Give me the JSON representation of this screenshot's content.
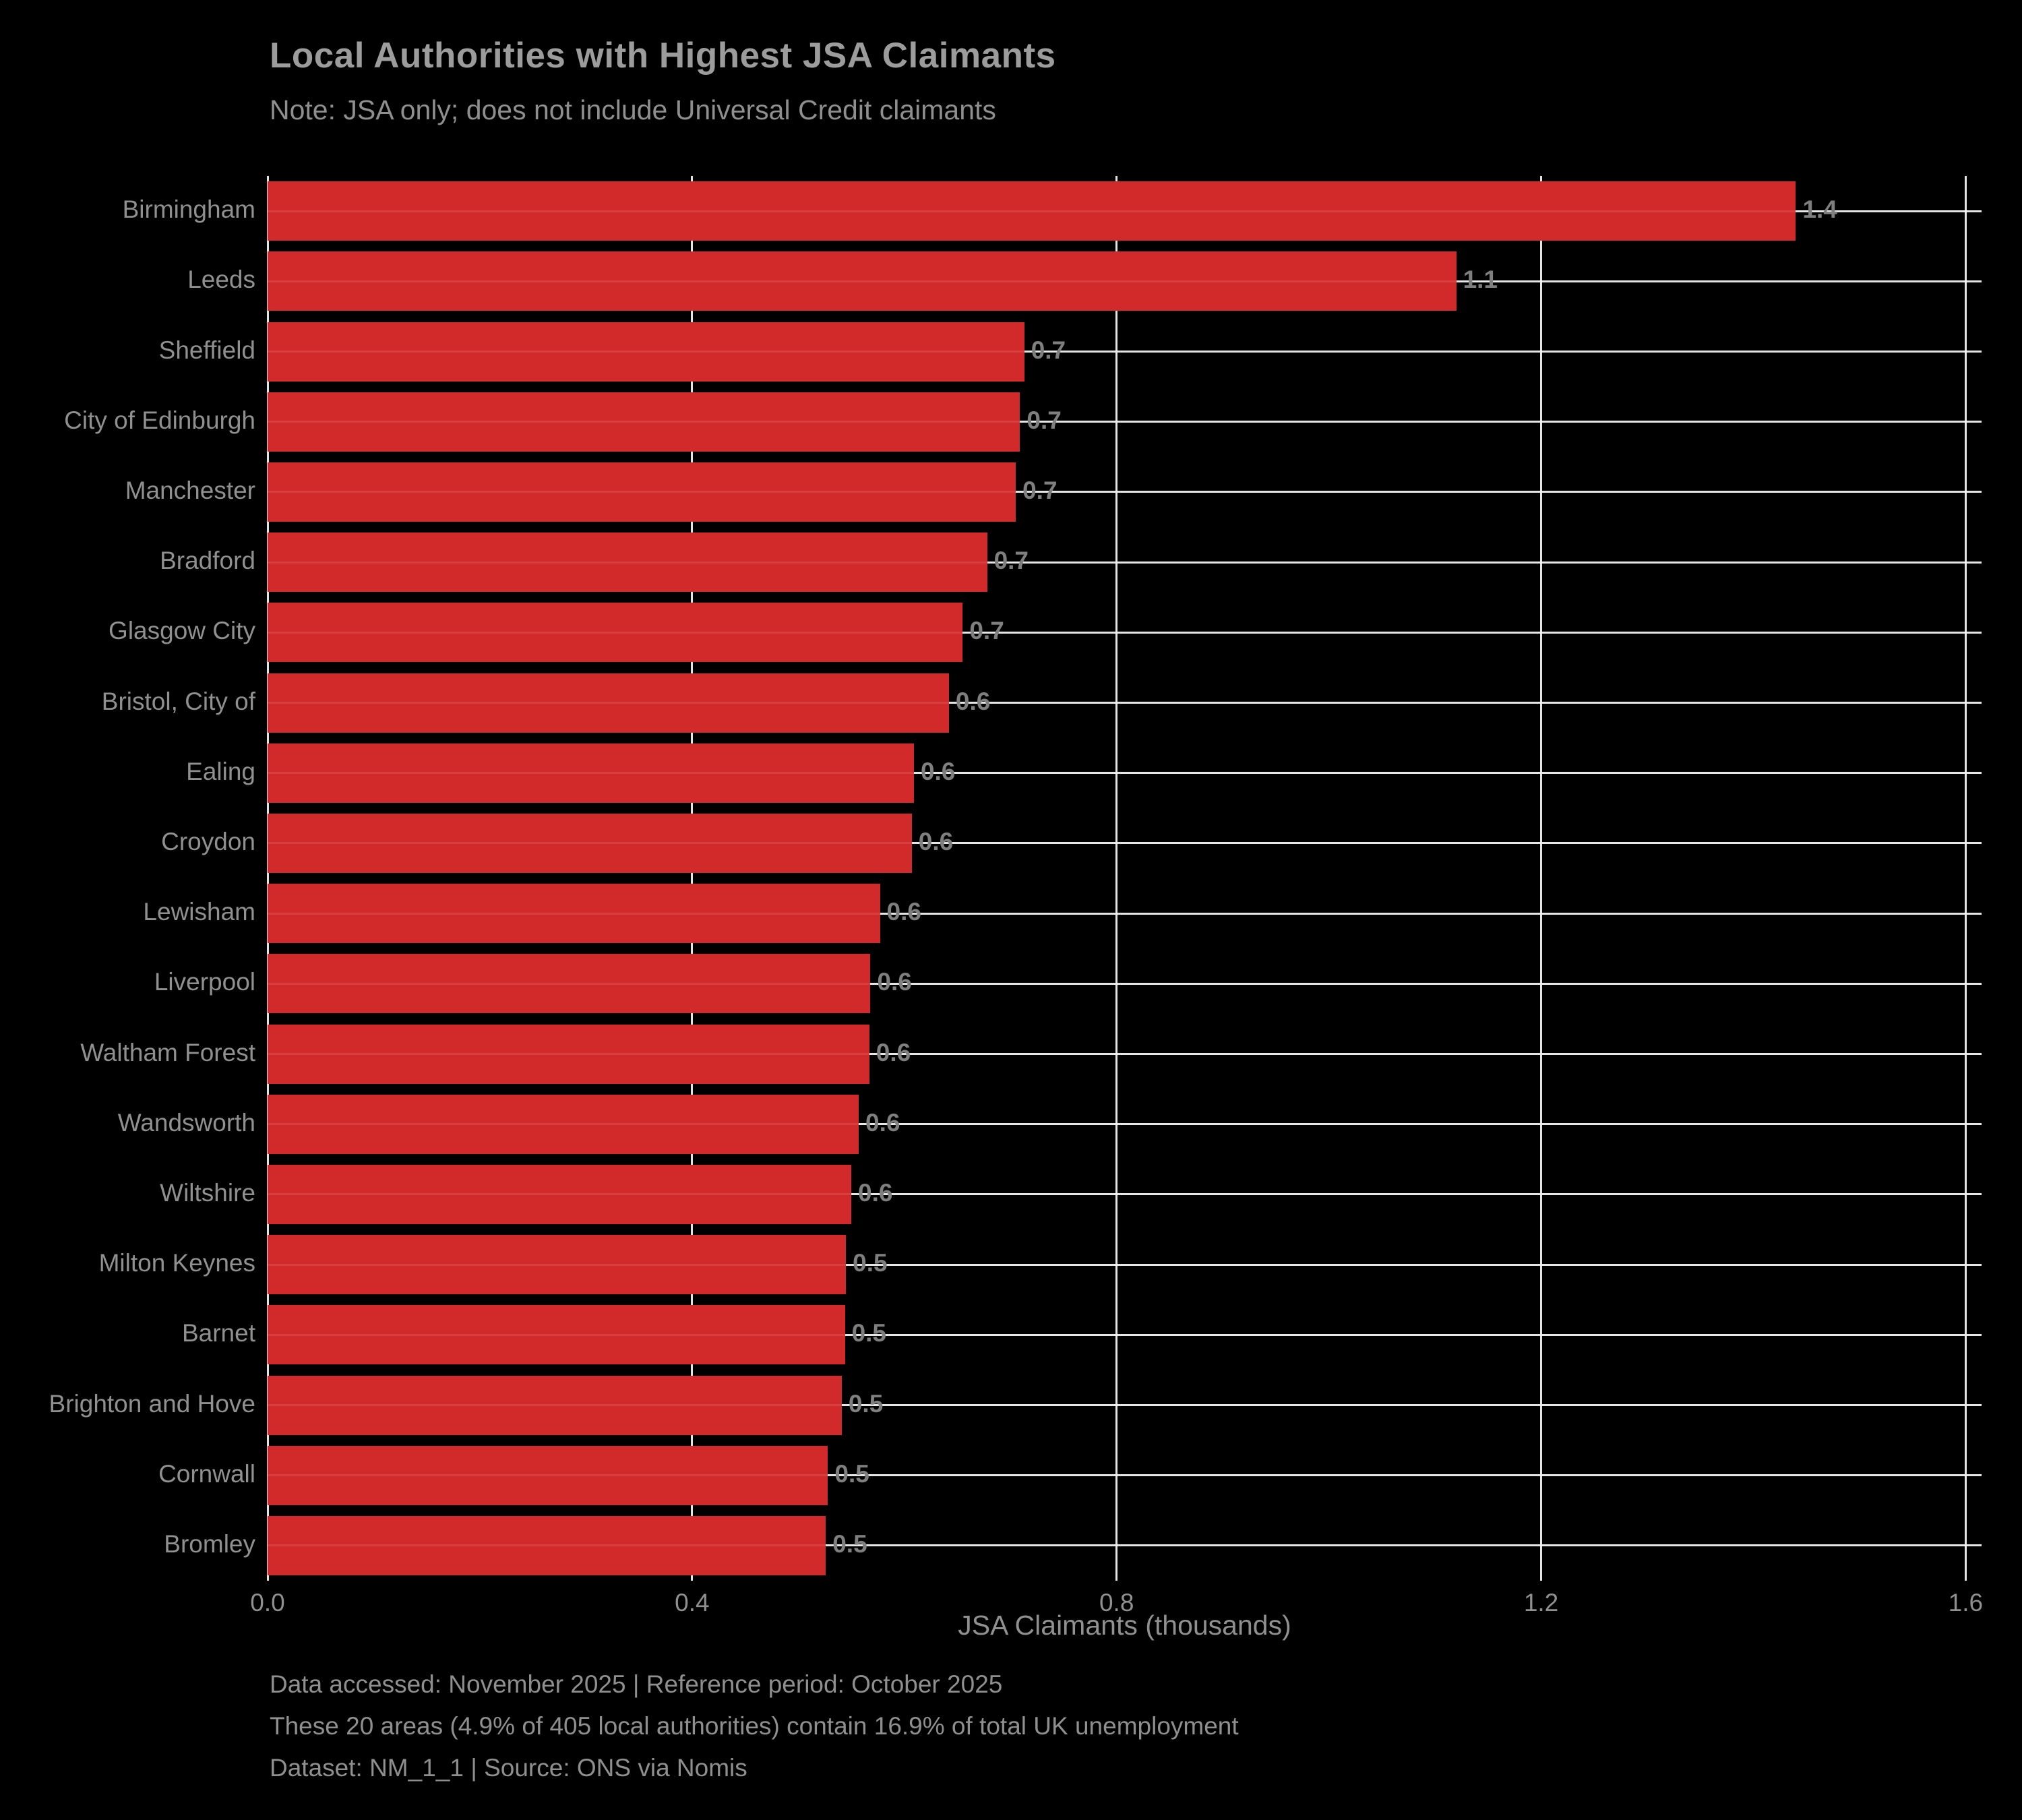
{
  "title": "Local Authorities with Highest JSA Claimants",
  "subtitle": "Note: JSA only; does not include Universal Credit claimants",
  "colors": {
    "background": "#000000",
    "bar": "#d22a2a",
    "gridline": "#f0f0f0",
    "title_text": "#9c9c9c",
    "label_text": "#909090",
    "value_label_text": "#7f7f7f"
  },
  "chart_data": {
    "type": "bar",
    "orientation": "horizontal",
    "title": "Local Authorities with Highest JSA Claimants",
    "subtitle": "Note: JSA only; does not include Universal Credit claimants",
    "xlabel": "JSA Claimants (thousands)",
    "ylabel": "",
    "xlim": [
      0,
      1.615
    ],
    "xticks": [
      0.0,
      0.4,
      0.8,
      1.2,
      1.6
    ],
    "xtick_labels": [
      "0.0",
      "0.4",
      "0.8",
      "1.2",
      "1.6"
    ],
    "grid": true,
    "legend": null,
    "categories": [
      "Birmingham",
      "Leeds",
      "Sheffield",
      "City of Edinburgh",
      "Manchester",
      "Bradford",
      "Glasgow City",
      "Bristol, City of",
      "Ealing",
      "Croydon",
      "Lewisham",
      "Liverpool",
      "Waltham Forest",
      "Wandsworth",
      "Wiltshire",
      "Milton Keynes",
      "Barnet",
      "Brighton and Hove",
      "Cornwall",
      "Bromley"
    ],
    "values": [
      1.44,
      1.12,
      0.713,
      0.709,
      0.705,
      0.678,
      0.655,
      0.642,
      0.609,
      0.607,
      0.577,
      0.568,
      0.567,
      0.557,
      0.55,
      0.545,
      0.544,
      0.541,
      0.528,
      0.526
    ],
    "bar_labels": [
      "1.4",
      "1.1",
      "0.7",
      "0.7",
      "0.7",
      "0.7",
      "0.7",
      "0.6",
      "0.6",
      "0.6",
      "0.6",
      "0.6",
      "0.6",
      "0.6",
      "0.6",
      "0.5",
      "0.5",
      "0.5",
      "0.5",
      "0.5"
    ]
  },
  "footer": {
    "line1": "Data accessed: November 2025 | Reference period: October 2025",
    "line2": "These 20 areas (4.9% of 405 local authorities) contain 16.9% of total UK unemployment",
    "line3": "Dataset: NM_1_1 | Source: ONS via Nomis"
  }
}
